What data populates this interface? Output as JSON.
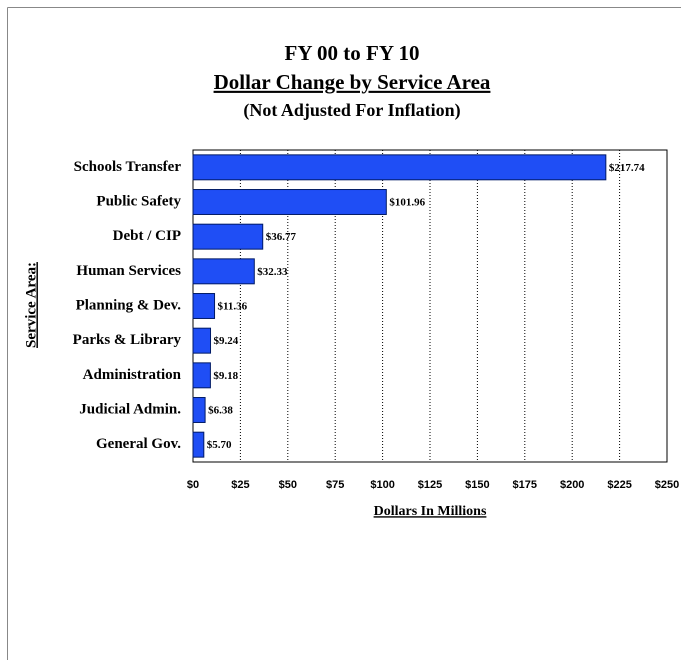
{
  "chart_data": {
    "type": "bar",
    "orientation": "horizontal",
    "title": "FY 00 to FY 10",
    "subtitle": "Dollar Change by Service Area",
    "note": "(Not Adjusted For Inflation)",
    "y_label": "Service Area:",
    "x_label": "Dollars In Millions",
    "categories": [
      "Schools Transfer",
      "Public Safety",
      "Debt / CIP",
      "Human Services",
      "Planning & Dev.",
      "Parks & Library",
      "Administration",
      "Judicial Admin.",
      "General Gov."
    ],
    "values": [
      217.74,
      101.96,
      36.77,
      32.33,
      11.36,
      9.24,
      9.18,
      6.38,
      5.7
    ],
    "value_labels": [
      "$217.74",
      "$101.96",
      "$36.77",
      "$32.33",
      "$11.36",
      "$9.24",
      "$9.18",
      "$6.38",
      "$5.70"
    ],
    "color": "#1f4ef5",
    "xlim": [
      0,
      250
    ],
    "xticks": [
      {
        "value": 0,
        "label": "$0"
      },
      {
        "value": 25,
        "label": "$25"
      },
      {
        "value": 50,
        "label": "$50"
      },
      {
        "value": 75,
        "label": "$75"
      },
      {
        "value": 100,
        "label": "$100"
      },
      {
        "value": 125,
        "label": "$125"
      },
      {
        "value": 150,
        "label": "$150"
      },
      {
        "value": 175,
        "label": "$175"
      },
      {
        "value": 200,
        "label": "$200"
      },
      {
        "value": 225,
        "label": "$225"
      },
      {
        "value": 250,
        "label": "$250"
      }
    ],
    "grid": true
  }
}
